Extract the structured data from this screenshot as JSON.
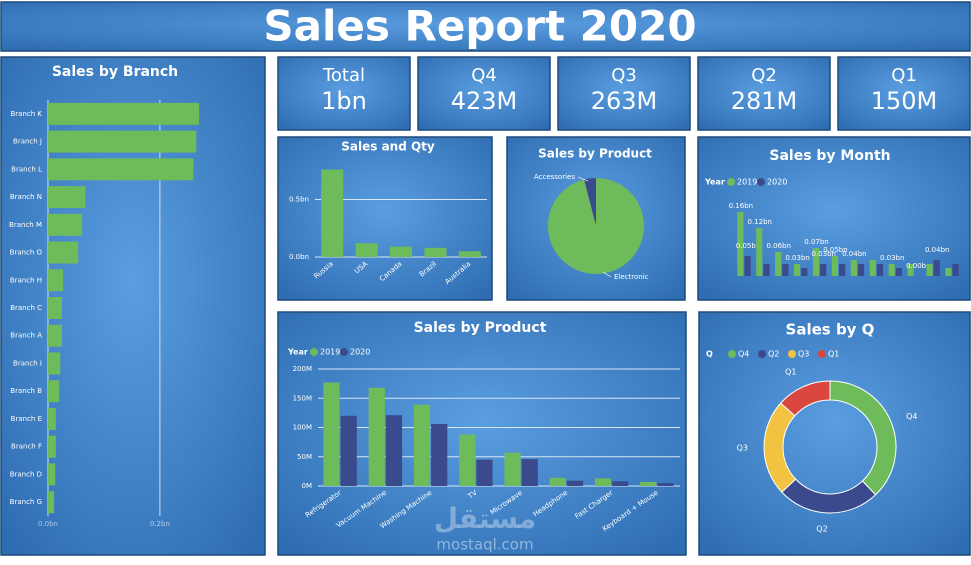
{
  "title": "Sales Report 2020",
  "kpis": [
    {
      "label": "Total",
      "value": "1bn"
    },
    {
      "label": "Q4",
      "value": "423M"
    },
    {
      "label": "Q3",
      "value": "263M"
    },
    {
      "label": "Q2",
      "value": "281M"
    },
    {
      "label": "Q1",
      "value": "150M"
    }
  ],
  "watermark": {
    "arabic": "مستقل",
    "latin": "mostaql.com"
  },
  "chart_data": [
    {
      "type": "hbar",
      "title": "Sales by Branch",
      "categories": [
        "Branch K",
        "Branch J",
        "Branch L",
        "Branch N",
        "Branch M",
        "Branch O",
        "Branch H",
        "Branch C",
        "Branch A",
        "Branch I",
        "Branch B",
        "Branch E",
        "Branch F",
        "Branch D",
        "Branch G"
      ],
      "values": [
        0.27,
        0.265,
        0.26,
        0.067,
        0.061,
        0.054,
        0.027,
        0.025,
        0.025,
        0.022,
        0.02,
        0.014,
        0.014,
        0.013,
        0.011
      ],
      "color": "#6dbb5a",
      "xlim": [
        0,
        0.37
      ],
      "xticks": [
        {
          "value": 0,
          "label": "0.0bn"
        },
        {
          "value": 0.2,
          "label": "0.2bn"
        }
      ],
      "grid": true
    },
    {
      "type": "bar",
      "title": "Sales and Qty",
      "categories": [
        "Russia",
        "USA",
        "Canada",
        "Brazil",
        "Australia"
      ],
      "values": [
        0.76,
        0.12,
        0.09,
        0.08,
        0.05
      ],
      "color": "#6dbb5a",
      "ylim": [
        0,
        0.8
      ],
      "yticks": [
        {
          "value": 0,
          "label": "0.0bn"
        },
        {
          "value": 0.5,
          "label": "0.5bn"
        }
      ],
      "grid": true
    },
    {
      "type": "pie",
      "title": "Sales by Product",
      "categories": [
        "Accessories",
        "Electronic"
      ],
      "values": [
        4,
        96
      ],
      "colors": [
        "#3b4a8c",
        "#6dbb5a"
      ]
    },
    {
      "type": "groupbar",
      "title": "Sales by Month",
      "legend_title": "Year",
      "categories": [
        null,
        null,
        null,
        null,
        null,
        null,
        null,
        null,
        null,
        null,
        null,
        null
      ],
      "series": [
        {
          "name": "2019",
          "color": "#6dbb5a",
          "values": [
            0.16,
            0.12,
            0.06,
            0.03,
            0.07,
            0.05,
            0.04,
            0.04,
            0.03,
            0.03,
            0.03,
            0.02
          ],
          "value_labels": [
            "0.16bn",
            "0.12bn",
            "0.06bn",
            "0.03bn",
            "0.07bn",
            "0.05bn",
            "0.04bn",
            null,
            "0.03bn",
            null,
            null,
            null
          ]
        },
        {
          "name": "2020",
          "color": "#3b4a8c",
          "values": [
            0.05,
            0.03,
            0.03,
            0.02,
            0.03,
            0.03,
            0.03,
            0.03,
            0.02,
            0.0,
            0.04,
            0.03
          ],
          "value_labels": [
            "0.05bn",
            null,
            null,
            null,
            "0.03bn",
            null,
            null,
            null,
            null,
            "0.00bn",
            "0.04bn",
            null
          ]
        }
      ],
      "ylim": [
        0,
        0.2
      ]
    },
    {
      "type": "groupbar",
      "title": "Sales by Product",
      "legend_title": "Year",
      "categories": [
        "Refrigerator",
        "Vacuum Machine",
        "Washing Machine",
        "TV",
        "Microwave",
        "Headphone",
        "Fast Charger",
        "Keyboard + Mouse"
      ],
      "series": [
        {
          "name": "2019",
          "color": "#6dbb5a",
          "values": [
            177,
            168,
            139,
            88,
            57,
            14,
            13,
            7
          ]
        },
        {
          "name": "2020",
          "color": "#3b4a8c",
          "values": [
            120,
            121,
            106,
            45,
            46,
            9,
            8,
            5
          ]
        }
      ],
      "ylim": [
        0,
        200
      ],
      "yticks": [
        {
          "value": 0,
          "label": "0M"
        },
        {
          "value": 50,
          "label": "50M"
        },
        {
          "value": 100,
          "label": "100M"
        },
        {
          "value": 150,
          "label": "150M"
        },
        {
          "value": 200,
          "label": "200M"
        }
      ],
      "grid": true
    },
    {
      "type": "donut",
      "title": "Sales by Q",
      "legend_title": "Q",
      "categories": [
        "Q4",
        "Q2",
        "Q3",
        "Q1"
      ],
      "values": [
        423,
        281,
        263,
        150
      ],
      "colors": [
        "#6dbb5a",
        "#3b4a8c",
        "#f2c340",
        "#d9473f"
      ]
    }
  ]
}
